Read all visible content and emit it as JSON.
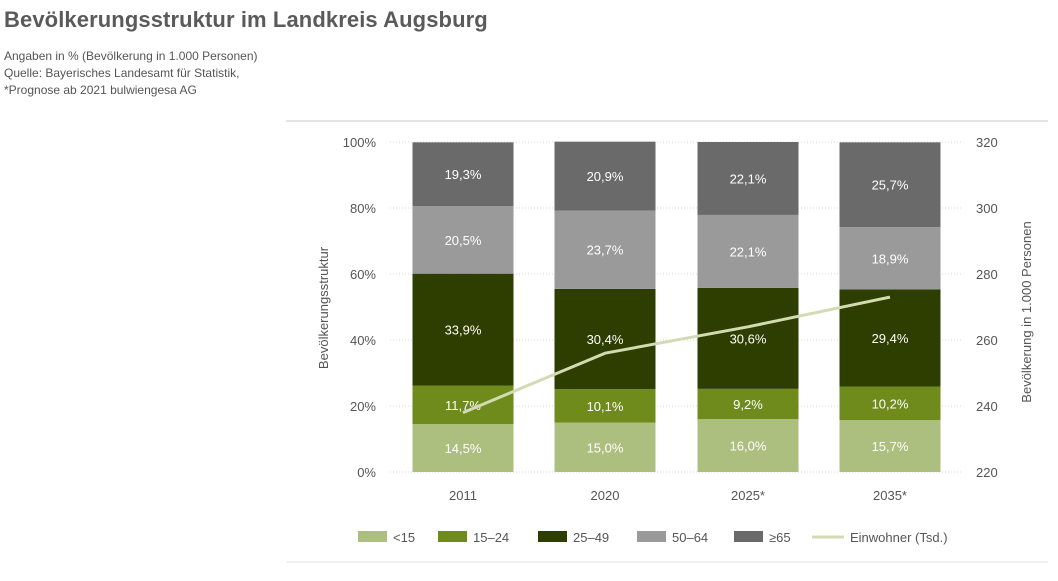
{
  "header": {
    "title": "Bevölkerungsstruktur im Landkreis Augsburg",
    "note_lines": [
      "Angaben in % (Bevölkerung in 1.000 Personen)",
      "Quelle: Bayerisches Landesamt für Statistik,",
      "*Prognose ab 2021 bulwiengesa AG"
    ]
  },
  "chart_data": {
    "type": "bar",
    "stacked": true,
    "categories": [
      "2011",
      "2020",
      "2025*",
      "2035*"
    ],
    "series": [
      {
        "name": "<15",
        "values": [
          14.5,
          15.0,
          16.0,
          15.7
        ],
        "labels": [
          "14,5%",
          "15,0%",
          "16,0%",
          "15,7%"
        ],
        "color": "#adbf7f"
      },
      {
        "name": "15–24",
        "values": [
          11.7,
          10.1,
          9.2,
          10.2
        ],
        "labels": [
          "11,7%",
          "10,1%",
          "9,2%",
          "10,2%"
        ],
        "color": "#6e8b1c"
      },
      {
        "name": "25–49",
        "values": [
          33.9,
          30.4,
          30.6,
          29.4
        ],
        "labels": [
          "33,9%",
          "30,4%",
          "30,6%",
          "29,4%"
        ],
        "color": "#2e3d00"
      },
      {
        "name": "50–64",
        "values": [
          20.5,
          23.7,
          22.1,
          18.9
        ],
        "labels": [
          "20,5%",
          "23,7%",
          "22,1%",
          "18,9%"
        ],
        "color": "#9a9a9a"
      },
      {
        "name": "≥65",
        "values": [
          19.3,
          20.9,
          22.1,
          25.7
        ],
        "labels": [
          "19,3%",
          "20,9%",
          "22,1%",
          "25,7%"
        ],
        "color": "#6a6a6a"
      }
    ],
    "line": {
      "name": "Einwohner (Tsd.)",
      "values": [
        238,
        256,
        264,
        273
      ],
      "color": "#d3dbb3",
      "axis": "right"
    },
    "ylabel": "Bevölkerungsstruktur",
    "ylabel_right": "Bevölkerung in 1.000 Personen",
    "ylim": [
      0,
      100
    ],
    "yticks": [
      "0%",
      "20%",
      "40%",
      "60%",
      "80%",
      "100%"
    ],
    "ylim_right": [
      220,
      320
    ],
    "yticks_right": [
      "220",
      "240",
      "260",
      "280",
      "300",
      "320"
    ],
    "legend": "bottom"
  }
}
